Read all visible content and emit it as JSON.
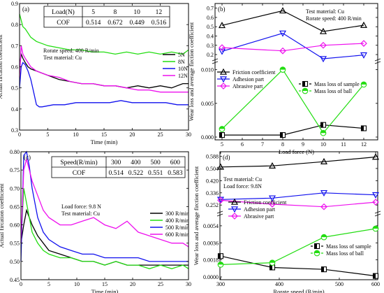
{
  "chart_data": [
    {
      "panel_label": "(a)",
      "type": "line",
      "xlabel": "Time (min)",
      "ylabel": "Actual fircation coefficient",
      "xlim": [
        0,
        30
      ],
      "ylim": [
        0.3,
        0.9
      ],
      "xticks": [
        "0",
        "5",
        "10",
        "15",
        "20",
        "25",
        "30"
      ],
      "yticks": [
        "0.3",
        "0.4",
        "0.5",
        "0.6",
        "0.7",
        "0.8",
        "0.9"
      ],
      "notes": [
        "Rorate speed: 400 R/min",
        "Test material: Cu"
      ],
      "table": {
        "row1_label": "Load(N)",
        "row2_label": "COF",
        "headers": [
          "5",
          "8",
          "10",
          "12"
        ],
        "values": [
          "0.514",
          "0.672",
          "0.449",
          "0.516"
        ]
      },
      "legend_position": "center-right",
      "series": [
        {
          "name": "5N",
          "color": "#000000",
          "x": [
            0,
            0.3,
            0.6,
            1,
            1.5,
            2,
            3,
            4,
            5,
            7,
            9,
            11,
            13,
            15,
            17,
            19,
            21,
            23,
            25,
            27,
            29,
            30
          ],
          "y": [
            0.6,
            0.66,
            0.64,
            0.62,
            0.6,
            0.59,
            0.58,
            0.57,
            0.56,
            0.54,
            0.53,
            0.52,
            0.52,
            0.51,
            0.51,
            0.5,
            0.51,
            0.5,
            0.51,
            0.5,
            0.52,
            0.52
          ]
        },
        {
          "name": "8N",
          "color": "#22dd11",
          "x": [
            0,
            0.3,
            0.6,
            1,
            2,
            3,
            4,
            5,
            7,
            9,
            11,
            13,
            15,
            17,
            19,
            21,
            23,
            25,
            27,
            29,
            30
          ],
          "y": [
            0.85,
            0.82,
            0.79,
            0.78,
            0.74,
            0.72,
            0.71,
            0.7,
            0.69,
            0.68,
            0.68,
            0.67,
            0.67,
            0.66,
            0.67,
            0.66,
            0.67,
            0.66,
            0.67,
            0.66,
            0.68
          ]
        },
        {
          "name": "10N",
          "color": "#1111ee",
          "x": [
            0,
            0.3,
            0.6,
            1,
            1.5,
            2,
            2.5,
            3,
            3.5,
            4,
            6,
            8,
            10,
            12,
            14,
            16,
            18,
            20,
            22,
            24,
            26,
            28,
            30
          ],
          "y": [
            0.5,
            0.6,
            0.62,
            0.61,
            0.58,
            0.54,
            0.48,
            0.42,
            0.41,
            0.41,
            0.42,
            0.42,
            0.43,
            0.43,
            0.43,
            0.43,
            0.44,
            0.43,
            0.43,
            0.43,
            0.43,
            0.42,
            0.42
          ]
        },
        {
          "name": "12N",
          "color": "#ee11ee",
          "x": [
            0,
            0.3,
            0.6,
            1,
            1.5,
            2,
            3,
            4,
            5,
            7,
            9,
            11,
            13,
            15,
            17,
            19,
            21,
            23,
            25,
            27,
            29,
            30
          ],
          "y": [
            0.55,
            0.7,
            0.66,
            0.64,
            0.62,
            0.6,
            0.58,
            0.57,
            0.56,
            0.55,
            0.53,
            0.52,
            0.52,
            0.51,
            0.51,
            0.5,
            0.49,
            0.49,
            0.48,
            0.48,
            0.48,
            0.48
          ]
        }
      ]
    },
    {
      "panel_label": "(b)",
      "type": "line",
      "xlabel": "Load force (N)",
      "ylabel": "Wear loss and average firction coefficient",
      "x": [
        5,
        8,
        10,
        12
      ],
      "xticks": [
        "5",
        "6",
        "7",
        "8",
        "9",
        "10",
        "11",
        "12"
      ],
      "yticks_upper": [
        "0.2",
        "0.3",
        "0.4",
        "0.5",
        "0.6",
        "0.7"
      ],
      "yticks_lower": [
        "0.000",
        "0.005",
        "0.010"
      ],
      "ylim_upper": [
        0.14,
        0.72
      ],
      "ylim_lower": [
        0.0,
        0.011
      ],
      "notes": [
        "Test material: Cu",
        "Rorate speed: 400 R/min"
      ],
      "series_upper": [
        {
          "name": "Friction coefficient",
          "color": "#000000",
          "marker": "triangle-up",
          "values": [
            0.514,
            0.672,
            0.449,
            0.516
          ]
        },
        {
          "name": "Adhesion part",
          "color": "#1111ee",
          "marker": "triangle-down",
          "values": [
            0.235,
            0.43,
            0.155,
            0.195
          ]
        },
        {
          "name": "Abrasive part",
          "color": "#ee11ee",
          "marker": "diamond",
          "values": [
            0.275,
            0.24,
            0.3,
            0.32
          ]
        }
      ],
      "series_lower": [
        {
          "name": "Mass loss of sample",
          "color": "#000000",
          "marker": "half-square",
          "values": [
            0.0003,
            0.0003,
            0.0018,
            0.0013
          ]
        },
        {
          "name": "Mass loss of ball",
          "color": "#22dd11",
          "marker": "half-circle",
          "values": [
            0.0012,
            0.01,
            0.0006,
            0.0078
          ]
        }
      ]
    },
    {
      "panel_label": "(c)",
      "type": "line",
      "xlabel": "Time (min)",
      "ylabel": "Actual fircation coefficient",
      "xlim": [
        0,
        30
      ],
      "ylim": [
        0.45,
        0.8
      ],
      "xticks": [
        "0",
        "5",
        "10",
        "15",
        "20",
        "25",
        "30"
      ],
      "yticks": [
        "0.45",
        "0.50",
        "0.55",
        "0.60",
        "0.65",
        "0.70",
        "0.75",
        "0.80"
      ],
      "notes": [
        "Load force: 9.8 N",
        "Test material: Cu"
      ],
      "table": {
        "row1_label": "Speed(R/min)",
        "row2_label": "COF",
        "headers": [
          "300",
          "400",
          "500",
          "600"
        ],
        "values": [
          "0.514",
          "0.522",
          "0.551",
          "0.583"
        ]
      },
      "legend_position": "center-right",
      "series": [
        {
          "name": "300 R/min",
          "color": "#000000",
          "x": [
            0,
            0.5,
            1,
            2,
            3,
            4,
            5,
            7,
            9,
            11,
            13,
            15,
            17,
            19,
            21,
            23,
            25,
            27,
            29,
            30
          ],
          "y": [
            0.55,
            0.6,
            0.64,
            0.6,
            0.57,
            0.55,
            0.53,
            0.52,
            0.51,
            0.5,
            0.5,
            0.49,
            0.5,
            0.49,
            0.49,
            0.49,
            0.49,
            0.49,
            0.49,
            0.49
          ]
        },
        {
          "name": "400 R/min",
          "color": "#22dd11",
          "x": [
            0,
            0.5,
            1,
            2,
            3,
            4,
            5,
            7,
            9,
            11,
            13,
            15,
            17,
            19,
            21,
            23,
            25,
            27,
            29,
            30
          ],
          "y": [
            0.55,
            0.7,
            0.66,
            0.58,
            0.55,
            0.53,
            0.52,
            0.51,
            0.51,
            0.5,
            0.5,
            0.49,
            0.5,
            0.49,
            0.49,
            0.48,
            0.49,
            0.48,
            0.49,
            0.48
          ]
        },
        {
          "name": "500 R/min",
          "color": "#1111ee",
          "x": [
            0,
            0.5,
            1,
            1.5,
            2,
            3,
            4,
            5,
            7,
            9,
            11,
            13,
            15,
            17,
            19,
            21,
            23,
            25,
            27,
            29,
            30
          ],
          "y": [
            0.5,
            0.79,
            0.8,
            0.76,
            0.7,
            0.62,
            0.58,
            0.56,
            0.54,
            0.53,
            0.52,
            0.52,
            0.51,
            0.51,
            0.51,
            0.51,
            0.5,
            0.5,
            0.5,
            0.5,
            0.5
          ]
        },
        {
          "name": "600 R/min",
          "color": "#ee11ee",
          "x": [
            0,
            0.5,
            1,
            2,
            3,
            4,
            5,
            7,
            9,
            11,
            13,
            15,
            17,
            19,
            21,
            23,
            25,
            27,
            29,
            30
          ],
          "y": [
            0.55,
            0.75,
            0.78,
            0.72,
            0.68,
            0.64,
            0.62,
            0.6,
            0.6,
            0.61,
            0.62,
            0.6,
            0.59,
            0.61,
            0.58,
            0.57,
            0.56,
            0.55,
            0.55,
            0.54
          ]
        }
      ]
    },
    {
      "panel_label": "(d)",
      "type": "line",
      "xlabel": "Rorate speed (R/min)",
      "ylabel": "Wear loss and average firction coefficient",
      "x": [
        300,
        400,
        500,
        600
      ],
      "xticks": [
        "300",
        "400",
        "500",
        "600"
      ],
      "yticks_upper": [
        "0.252",
        "0.336",
        "0.420",
        "0.504",
        "0.588"
      ],
      "yticks_lower": [
        "0.0000",
        "0.0018",
        "0.0036",
        "0.0054"
      ],
      "ylim_upper": [
        0.2,
        0.6
      ],
      "ylim_lower": [
        0.0,
        0.0065
      ],
      "notes": [
        "Test material: Cu",
        "Load force: 9.8N"
      ],
      "series_upper": [
        {
          "name": "Friction coefficient",
          "color": "#000000",
          "marker": "triangle-up",
          "values": [
            0.514,
            0.522,
            0.551,
            0.583
          ]
        },
        {
          "name": "Adhesion part",
          "color": "#1111ee",
          "marker": "triangle-down",
          "values": [
            0.29,
            0.3,
            0.336,
            0.322
          ]
        },
        {
          "name": "Abrasive part",
          "color": "#ee11ee",
          "marker": "diamond",
          "values": [
            0.285,
            0.258,
            0.24,
            0.272
          ]
        }
      ],
      "series_lower": [
        {
          "name": "Mass loss of sample",
          "color": "#000000",
          "marker": "half-square",
          "values": [
            0.0022,
            0.001,
            0.0008,
            0.0001
          ]
        },
        {
          "name": "Mass loss of ball",
          "color": "#22dd11",
          "marker": "half-circle",
          "values": [
            0.0013,
            0.0015,
            0.0042,
            0.0051
          ]
        }
      ]
    }
  ]
}
